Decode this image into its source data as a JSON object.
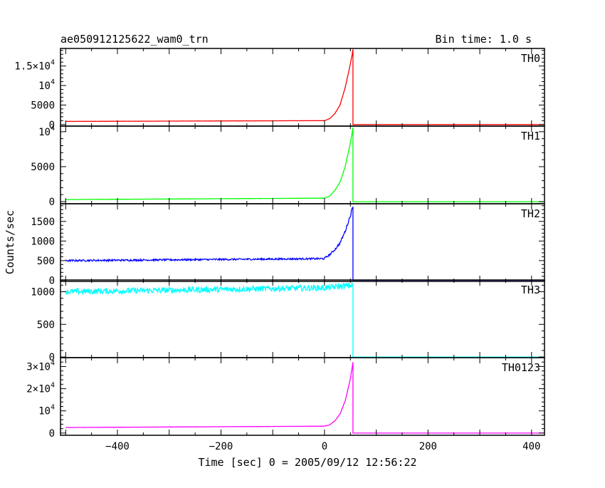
{
  "chart_data": {
    "type": "line",
    "title_left": "ae050912125622_wam0_trn",
    "title_right": "Bin time: 1.0 s",
    "xlabel": "Time [sec] 0 = 2005/09/12 12:56:22",
    "ylabel": "Counts/sec",
    "xlim": [
      -510,
      425
    ],
    "x_ticks": [
      {
        "value": -400,
        "label": "−400"
      },
      {
        "value": -200,
        "label": "−200"
      },
      {
        "value": 0,
        "label": "0"
      },
      {
        "value": 200,
        "label": "200"
      },
      {
        "value": 400,
        "label": "400"
      }
    ],
    "panels": [
      {
        "name": "TH0",
        "color": "#ff0000",
        "ylim": [
          -400,
          19500
        ],
        "yticks": [
          {
            "value": 0,
            "base": "0"
          },
          {
            "value": 5000,
            "base": "5000"
          },
          {
            "value": 10000,
            "base": "10",
            "exp": "4"
          },
          {
            "value": 15000,
            "base": "1.5×10",
            "exp": "4"
          }
        ],
        "series": {
          "x_start": -500,
          "x_end": 425,
          "baseline_start": 800,
          "baseline_end": 1000,
          "noise": 20,
          "rise_x": [
            0,
            10,
            20,
            30,
            40,
            50,
            55
          ],
          "rise_y": [
            1000,
            1500,
            2800,
            5000,
            9500,
            15500,
            19200
          ],
          "after_value": 0
        }
      },
      {
        "name": "TH1",
        "color": "#00ff00",
        "ylim": [
          -300,
          10800
        ],
        "yticks": [
          {
            "value": 0,
            "base": "0"
          },
          {
            "value": 5000,
            "base": "5000"
          },
          {
            "value": 10000,
            "base": "10",
            "exp": "4"
          }
        ],
        "series": {
          "x_start": -500,
          "x_end": 425,
          "baseline_start": 300,
          "baseline_end": 500,
          "noise": 12,
          "rise_x": [
            0,
            10,
            20,
            30,
            40,
            50,
            55
          ],
          "rise_y": [
            500,
            800,
            1600,
            2800,
            5000,
            8400,
            10600
          ],
          "after_value": 0
        }
      },
      {
        "name": "TH2",
        "color": "#0000ff",
        "ylim": [
          -30,
          1950
        ],
        "yticks": [
          {
            "value": 0,
            "base": "0"
          },
          {
            "value": 500,
            "base": "500"
          },
          {
            "value": 1000,
            "base": "1000"
          },
          {
            "value": 1500,
            "base": "1500"
          }
        ],
        "series": {
          "x_start": -500,
          "x_end": 425,
          "baseline_start": 500,
          "baseline_end": 550,
          "noise": 22,
          "rise_x": [
            0,
            10,
            20,
            30,
            40,
            50,
            55
          ],
          "rise_y": [
            560,
            650,
            780,
            950,
            1250,
            1650,
            1900
          ],
          "after_value": 0
        }
      },
      {
        "name": "TH3",
        "color": "#00ffff",
        "ylim": [
          -10,
          1180
        ],
        "yticks": [
          {
            "value": 0,
            "base": "0"
          },
          {
            "value": 500,
            "base": "500"
          },
          {
            "value": 1000,
            "base": "1000"
          }
        ],
        "series": {
          "x_start": -500,
          "x_end": 425,
          "baseline_start": 1000,
          "baseline_end": 1060,
          "noise": 45,
          "rise_x": [
            0,
            55
          ],
          "rise_y": [
            1060,
            1100
          ],
          "after_value": 0
        }
      },
      {
        "name": "TH0123",
        "color": "#ff00ff",
        "ylim": [
          -1000,
          34000
        ],
        "yticks": [
          {
            "value": 0,
            "base": "0"
          },
          {
            "value": 10000,
            "base": "10",
            "exp": "4"
          },
          {
            "value": 20000,
            "base": "2×10",
            "exp": "4"
          },
          {
            "value": 30000,
            "base": "3×10",
            "exp": "4"
          }
        ],
        "series": {
          "x_start": -500,
          "x_end": 425,
          "baseline_start": 2500,
          "baseline_end": 3100,
          "noise": 40,
          "rise_x": [
            0,
            10,
            20,
            30,
            40,
            50,
            55
          ],
          "rise_y": [
            3100,
            3700,
            5500,
            8500,
            14500,
            24500,
            32000
          ],
          "after_value": 0
        }
      }
    ]
  }
}
